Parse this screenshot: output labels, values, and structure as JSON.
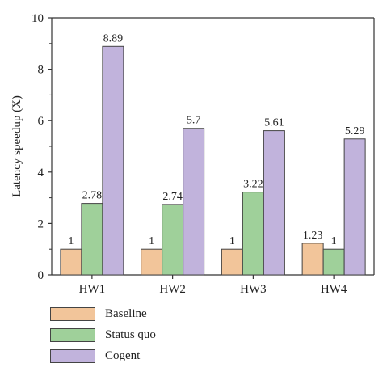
{
  "chart_data": {
    "type": "bar",
    "title": "",
    "xlabel": "",
    "ylabel": "Latency speedup (X)",
    "ylim": [
      0,
      10
    ],
    "yticks": [
      "0",
      "2",
      "4",
      "6",
      "8",
      "10"
    ],
    "categories": [
      "HW1",
      "HW2",
      "HW3",
      "HW4"
    ],
    "series": [
      {
        "name": "Baseline",
        "values": [
          1,
          1,
          1,
          1.23
        ],
        "labels": [
          "1",
          "1",
          "1",
          "1.23"
        ],
        "color": "#f2c59a"
      },
      {
        "name": "Status quo",
        "values": [
          2.78,
          2.74,
          3.22,
          1
        ],
        "labels": [
          "2.78",
          "2.74",
          "3.22",
          "1"
        ],
        "color": "#9fd09a"
      },
      {
        "name": "Cogent",
        "values": [
          8.89,
          5.7,
          5.61,
          5.29
        ],
        "labels": [
          "8.89",
          "5.7",
          "5.61",
          "5.29"
        ],
        "color": "#c1b3dc"
      }
    ],
    "grid": false,
    "legend": "bottom-left"
  }
}
